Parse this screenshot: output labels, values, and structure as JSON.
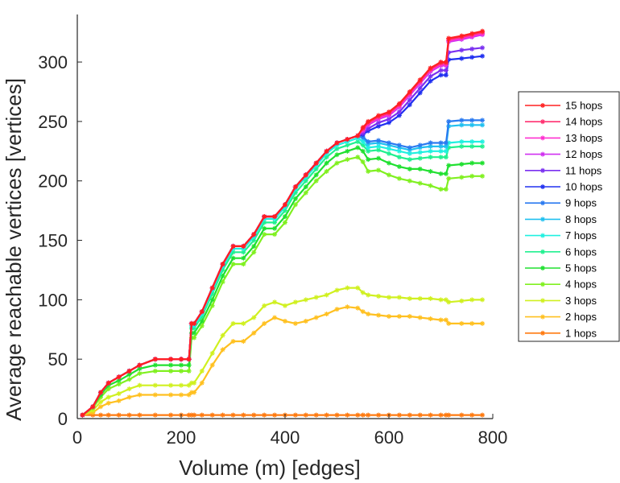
{
  "chart_data": {
    "type": "line",
    "title": "",
    "xlabel": "Volume (m) [edges]",
    "ylabel": "Average reachable vertices [vertices]",
    "xlim": [
      0,
      800
    ],
    "ylim": [
      0,
      340
    ],
    "xticks": [
      0,
      200,
      400,
      600,
      800
    ],
    "yticks": [
      0,
      50,
      100,
      150,
      200,
      250,
      300
    ],
    "grid": false,
    "legend_position": "right",
    "x": [
      10,
      30,
      45,
      60,
      80,
      100,
      120,
      150,
      180,
      200,
      215,
      220,
      225,
      240,
      260,
      280,
      300,
      320,
      340,
      360,
      380,
      400,
      420,
      440,
      460,
      480,
      500,
      520,
      540,
      550,
      560,
      580,
      600,
      620,
      640,
      660,
      680,
      700,
      710,
      715,
      740,
      760,
      780
    ],
    "series": [
      {
        "name": "15 hops",
        "color": "#ff2020",
        "values": [
          3,
          10,
          22,
          30,
          35,
          40,
          45,
          50,
          50,
          50,
          50,
          80,
          80,
          90,
          110,
          130,
          145,
          145,
          155,
          170,
          170,
          180,
          195,
          205,
          215,
          225,
          232,
          235,
          238,
          245,
          250,
          255,
          258,
          265,
          275,
          285,
          295,
          300,
          300,
          320,
          322,
          324,
          326
        ]
      },
      {
        "name": "14 hops",
        "color": "#ff3070",
        "values": [
          3,
          10,
          22,
          30,
          35,
          40,
          45,
          50,
          50,
          50,
          50,
          80,
          80,
          90,
          110,
          130,
          145,
          145,
          155,
          170,
          170,
          180,
          195,
          205,
          215,
          225,
          232,
          235,
          238,
          244,
          249,
          254,
          257,
          264,
          274,
          284,
          294,
          299,
          299,
          319,
          321,
          323,
          325
        ]
      },
      {
        "name": "13 hops",
        "color": "#ff30d0",
        "values": [
          3,
          10,
          22,
          30,
          35,
          40,
          45,
          50,
          50,
          50,
          50,
          80,
          80,
          90,
          110,
          130,
          145,
          145,
          155,
          170,
          170,
          180,
          195,
          205,
          215,
          225,
          232,
          235,
          238,
          243,
          248,
          253,
          256,
          263,
          273,
          283,
          293,
          298,
          298,
          318,
          320,
          322,
          324
        ]
      },
      {
        "name": "12 hops",
        "color": "#d030f0",
        "values": [
          3,
          10,
          22,
          30,
          35,
          40,
          45,
          50,
          50,
          50,
          50,
          80,
          80,
          90,
          110,
          130,
          145,
          145,
          155,
          170,
          170,
          180,
          195,
          205,
          215,
          225,
          232,
          235,
          238,
          242,
          247,
          252,
          255,
          262,
          272,
          282,
          292,
          297,
          297,
          317,
          319,
          321,
          323
        ]
      },
      {
        "name": "11 hops",
        "color": "#7a30f0",
        "values": [
          3,
          10,
          22,
          30,
          35,
          40,
          45,
          50,
          50,
          50,
          50,
          80,
          80,
          90,
          110,
          130,
          145,
          145,
          155,
          170,
          170,
          180,
          195,
          205,
          215,
          225,
          232,
          235,
          238,
          240,
          244,
          249,
          252,
          258,
          268,
          278,
          288,
          293,
          293,
          308,
          310,
          311,
          312
        ]
      },
      {
        "name": "10 hops",
        "color": "#2030f0",
        "values": [
          3,
          10,
          22,
          30,
          35,
          40,
          45,
          50,
          50,
          50,
          50,
          80,
          80,
          90,
          110,
          130,
          145,
          145,
          155,
          170,
          170,
          180,
          195,
          205,
          215,
          225,
          232,
          235,
          238,
          239,
          242,
          246,
          249,
          255,
          264,
          274,
          284,
          289,
          289,
          302,
          303,
          304,
          305
        ]
      },
      {
        "name": "9 hops",
        "color": "#2a7af0",
        "values": [
          3,
          10,
          22,
          30,
          35,
          40,
          45,
          50,
          50,
          50,
          50,
          80,
          80,
          90,
          110,
          130,
          145,
          145,
          155,
          170,
          170,
          180,
          195,
          205,
          215,
          225,
          232,
          235,
          238,
          237,
          233,
          234,
          232,
          230,
          228,
          230,
          232,
          232,
          232,
          250,
          251,
          251,
          251
        ]
      },
      {
        "name": "8 hops",
        "color": "#20c0f0",
        "values": [
          3,
          10,
          22,
          30,
          35,
          40,
          45,
          50,
          50,
          50,
          50,
          80,
          80,
          90,
          110,
          130,
          145,
          145,
          155,
          170,
          170,
          180,
          195,
          205,
          215,
          225,
          232,
          235,
          238,
          236,
          231,
          232,
          230,
          228,
          226,
          228,
          229,
          229,
          229,
          246,
          247,
          247,
          247
        ]
      },
      {
        "name": "7 hops",
        "color": "#20f0e0",
        "values": [
          3,
          10,
          22,
          30,
          35,
          40,
          45,
          50,
          50,
          50,
          50,
          78,
          78,
          88,
          108,
          128,
          143,
          143,
          153,
          168,
          168,
          178,
          193,
          203,
          213,
          223,
          230,
          233,
          236,
          233,
          228,
          229,
          227,
          225,
          223,
          224,
          225,
          225,
          225,
          232,
          233,
          233,
          233
        ]
      },
      {
        "name": "6 hops",
        "color": "#20f090",
        "values": [
          3,
          10,
          22,
          30,
          35,
          40,
          45,
          50,
          50,
          50,
          50,
          76,
          76,
          86,
          105,
          125,
          140,
          140,
          150,
          165,
          165,
          175,
          190,
          200,
          210,
          220,
          227,
          230,
          233,
          230,
          225,
          226,
          223,
          220,
          218,
          219,
          220,
          220,
          220,
          228,
          229,
          229,
          229
        ]
      },
      {
        "name": "5 hops",
        "color": "#20e030",
        "values": [
          3,
          10,
          20,
          28,
          32,
          37,
          42,
          45,
          45,
          45,
          45,
          72,
          72,
          82,
          100,
          120,
          135,
          135,
          145,
          160,
          160,
          170,
          185,
          195,
          205,
          215,
          222,
          225,
          228,
          225,
          218,
          219,
          215,
          212,
          210,
          210,
          208,
          206,
          206,
          213,
          214,
          215,
          215
        ]
      },
      {
        "name": "4 hops",
        "color": "#80f020",
        "values": [
          3,
          9,
          18,
          25,
          29,
          33,
          38,
          40,
          40,
          40,
          40,
          68,
          68,
          78,
          95,
          115,
          130,
          130,
          140,
          155,
          155,
          165,
          180,
          190,
          200,
          208,
          215,
          218,
          220,
          216,
          208,
          209,
          205,
          202,
          200,
          198,
          196,
          193,
          193,
          202,
          203,
          204,
          204
        ]
      },
      {
        "name": "3 hops",
        "color": "#d0f020",
        "values": [
          3,
          7,
          14,
          18,
          21,
          25,
          28,
          28,
          28,
          28,
          28,
          30,
          30,
          40,
          55,
          70,
          80,
          80,
          85,
          95,
          98,
          95,
          98,
          100,
          102,
          104,
          108,
          110,
          110,
          106,
          104,
          103,
          102,
          102,
          101,
          101,
          101,
          100,
          100,
          98,
          99,
          100,
          100
        ]
      },
      {
        "name": "2 hops",
        "color": "#ffc020",
        "values": [
          3,
          5,
          10,
          13,
          15,
          18,
          20,
          20,
          20,
          20,
          20,
          22,
          22,
          30,
          45,
          58,
          65,
          65,
          72,
          80,
          85,
          82,
          80,
          82,
          85,
          88,
          92,
          94,
          93,
          90,
          88,
          87,
          86,
          86,
          86,
          85,
          84,
          83,
          83,
          80,
          80,
          80,
          80
        ]
      },
      {
        "name": "1 hops",
        "color": "#ff7a10",
        "values": [
          3,
          3,
          3,
          3,
          3,
          3,
          3,
          3,
          3,
          3,
          3,
          3,
          3,
          3,
          3,
          3,
          3,
          3,
          3,
          3,
          3,
          3,
          3,
          3,
          3,
          3,
          3,
          3,
          3,
          3,
          3,
          3,
          3,
          3,
          3,
          3,
          3,
          3,
          3,
          3,
          3,
          3,
          3
        ]
      }
    ]
  }
}
